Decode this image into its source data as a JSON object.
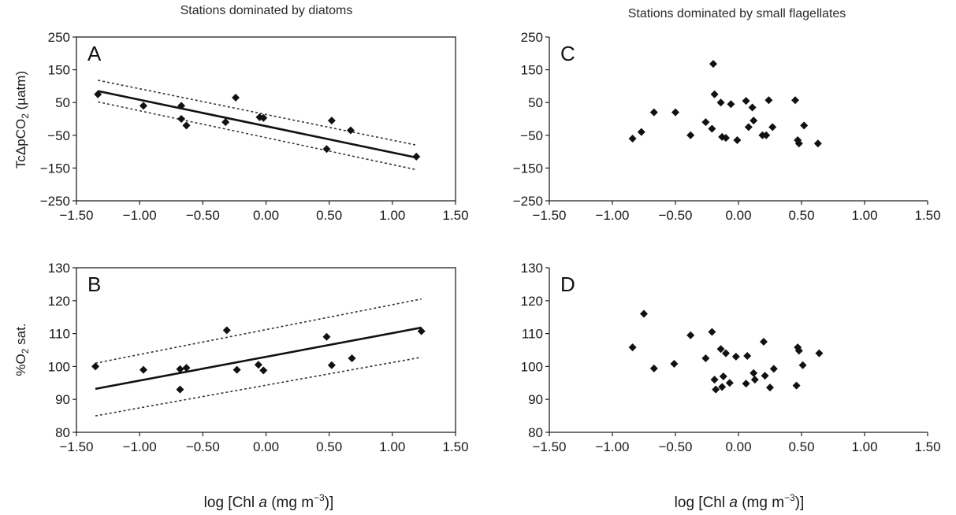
{
  "column_titles": {
    "left": "Stations dominated by diatoms",
    "right": "Stations dominated by small flagellates"
  },
  "axis_labels": {
    "xlabel_pre": "log [Chl ",
    "xlabel_italic": "a",
    "xlabel_mid": " (mg m",
    "xlabel_sup": "−3",
    "xlabel_post": ")]",
    "ylabel_top_pre": "TcΔpCO",
    "ylabel_top_sub": "2",
    "ylabel_top_post": " (µatm)",
    "ylabel_bottom_pre": "%O",
    "ylabel_bottom_sub": "2",
    "ylabel_bottom_post": " sat."
  },
  "chart_data": [
    {
      "panel": "A",
      "type": "scatter",
      "xlim": [
        -1.5,
        1.5
      ],
      "ylim": [
        -250,
        250
      ],
      "xticks": [
        "−1.50",
        "−1.00",
        "−0.50",
        "0.00",
        "0.50",
        "1.00",
        "1.50"
      ],
      "yticks": [
        "250",
        "150",
        "50",
        "−50",
        "−150",
        "−250"
      ],
      "ytick_values": [
        250,
        150,
        50,
        -50,
        -150,
        -250
      ],
      "points": [
        [
          -1.33,
          75
        ],
        [
          -0.97,
          40
        ],
        [
          -0.67,
          40
        ],
        [
          -0.67,
          0
        ],
        [
          -0.63,
          -20
        ],
        [
          -0.32,
          -10
        ],
        [
          -0.24,
          65
        ],
        [
          -0.05,
          5
        ],
        [
          -0.02,
          3
        ],
        [
          0.48,
          -92
        ],
        [
          0.52,
          -5
        ],
        [
          0.67,
          -35
        ],
        [
          1.19,
          -115
        ]
      ],
      "regression": {
        "x": [
          -1.33,
          1.19
        ],
        "y": [
          85,
          -118
        ]
      },
      "ci_upper": {
        "x": [
          -1.33,
          1.19
        ],
        "y": [
          118,
          -80
        ]
      },
      "ci_lower": {
        "x": [
          -1.33,
          1.19
        ],
        "y": [
          52,
          -155
        ]
      }
    },
    {
      "panel": "B",
      "type": "scatter",
      "xlim": [
        -1.5,
        1.5
      ],
      "ylim": [
        80,
        130
      ],
      "xticks": [
        "−1.50",
        "−1.00",
        "−0.50",
        "0.00",
        "0.50",
        "1.00",
        "1.50"
      ],
      "yticks": [
        "130",
        "120",
        "110",
        "100",
        "90",
        "80"
      ],
      "ytick_values": [
        130,
        120,
        110,
        100,
        90,
        80
      ],
      "points": [
        [
          -1.35,
          100
        ],
        [
          -0.97,
          99
        ],
        [
          -0.68,
          99.2
        ],
        [
          -0.68,
          93
        ],
        [
          -0.63,
          99.6
        ],
        [
          -0.31,
          111
        ],
        [
          -0.23,
          99
        ],
        [
          -0.06,
          100.5
        ],
        [
          -0.02,
          98.8
        ],
        [
          0.48,
          109
        ],
        [
          0.52,
          100.4
        ],
        [
          0.68,
          102.5
        ],
        [
          1.23,
          110.7
        ]
      ],
      "regression": {
        "x": [
          -1.35,
          1.23
        ],
        "y": [
          93.2,
          111.8
        ]
      },
      "ci_upper": {
        "x": [
          -1.35,
          1.23
        ],
        "y": [
          101,
          120.5
        ]
      },
      "ci_lower": {
        "x": [
          -1.35,
          1.23
        ],
        "y": [
          85,
          102.8
        ]
      }
    },
    {
      "panel": "C",
      "type": "scatter",
      "xlim": [
        -1.5,
        1.5
      ],
      "ylim": [
        -250,
        250
      ],
      "xticks": [
        "−1.50",
        "−1.00",
        "−0.50",
        "0.00",
        "0.50",
        "1.00",
        "1.50"
      ],
      "yticks": [
        "250",
        "150",
        "50",
        "−50",
        "−150",
        "−250"
      ],
      "ytick_values": [
        250,
        150,
        50,
        -50,
        -150,
        -250
      ],
      "points": [
        [
          -0.84,
          -60
        ],
        [
          -0.77,
          -40
        ],
        [
          -0.67,
          20
        ],
        [
          -0.5,
          20
        ],
        [
          -0.38,
          -50
        ],
        [
          -0.26,
          -10
        ],
        [
          -0.21,
          -30
        ],
        [
          -0.2,
          168
        ],
        [
          -0.19,
          75
        ],
        [
          -0.14,
          50
        ],
        [
          -0.13,
          -55
        ],
        [
          -0.1,
          -58
        ],
        [
          -0.06,
          45
        ],
        [
          -0.01,
          -65
        ],
        [
          0.06,
          55
        ],
        [
          0.08,
          -25
        ],
        [
          0.11,
          35
        ],
        [
          0.12,
          -5
        ],
        [
          0.19,
          -50
        ],
        [
          0.22,
          -50
        ],
        [
          0.24,
          57
        ],
        [
          0.27,
          -25
        ],
        [
          0.45,
          57
        ],
        [
          0.47,
          -65
        ],
        [
          0.48,
          -75
        ],
        [
          0.52,
          -20
        ],
        [
          0.63,
          -75
        ]
      ]
    },
    {
      "panel": "D",
      "type": "scatter",
      "xlim": [
        -1.5,
        1.5
      ],
      "ylim": [
        80,
        130
      ],
      "xticks": [
        "−1.50",
        "−1.00",
        "−0.50",
        "0.00",
        "0.50",
        "1.00",
        "1.50"
      ],
      "yticks": [
        "130",
        "120",
        "110",
        "100",
        "90",
        "80"
      ],
      "ytick_values": [
        130,
        120,
        110,
        100,
        90,
        80
      ],
      "points": [
        [
          -0.84,
          105.8
        ],
        [
          -0.75,
          116
        ],
        [
          -0.67,
          99.4
        ],
        [
          -0.51,
          100.8
        ],
        [
          -0.38,
          109.5
        ],
        [
          -0.26,
          102.5
        ],
        [
          -0.21,
          110.5
        ],
        [
          -0.19,
          96
        ],
        [
          -0.18,
          93
        ],
        [
          -0.14,
          105.3
        ],
        [
          -0.13,
          93.8
        ],
        [
          -0.12,
          97
        ],
        [
          -0.1,
          104
        ],
        [
          -0.07,
          95
        ],
        [
          -0.02,
          103
        ],
        [
          0.06,
          94.8
        ],
        [
          0.07,
          103.2
        ],
        [
          0.12,
          98
        ],
        [
          0.13,
          96
        ],
        [
          0.2,
          107.5
        ],
        [
          0.21,
          97.2
        ],
        [
          0.25,
          93.6
        ],
        [
          0.28,
          99.3
        ],
        [
          0.46,
          94.2
        ],
        [
          0.47,
          105.8
        ],
        [
          0.48,
          104.8
        ],
        [
          0.51,
          100.4
        ],
        [
          0.64,
          104
        ]
      ]
    }
  ]
}
